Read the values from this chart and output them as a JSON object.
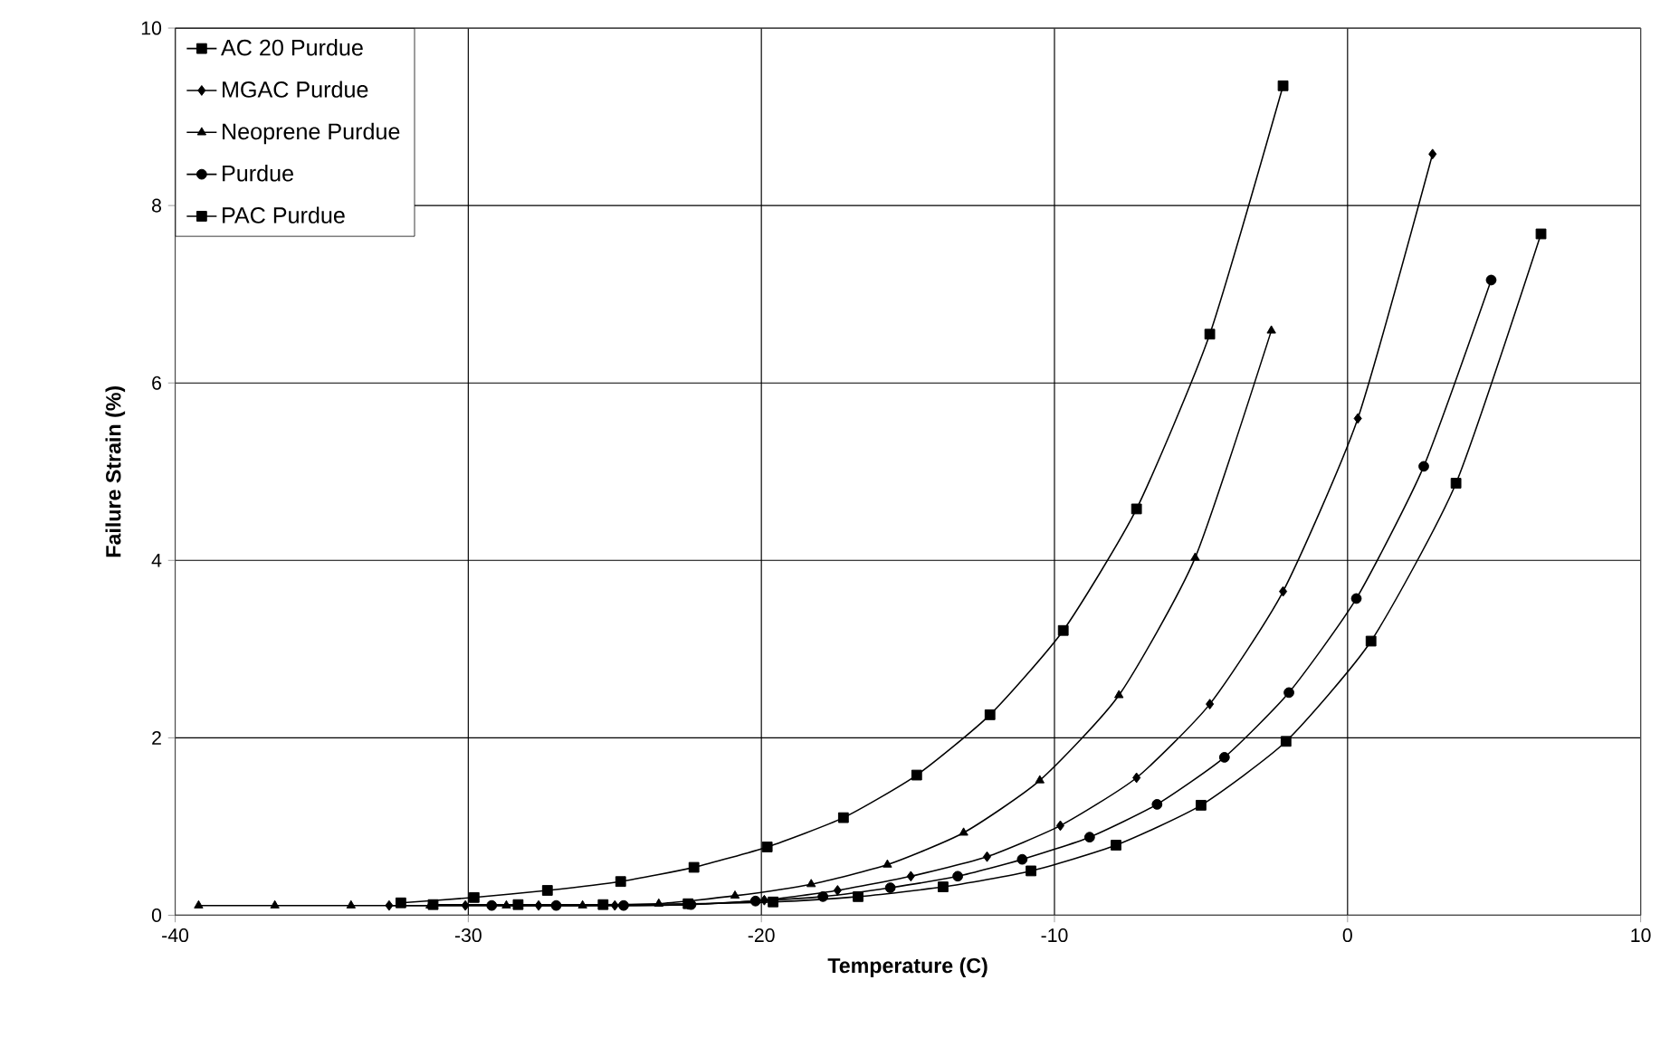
{
  "chart_data": {
    "type": "line",
    "xlabel": "Temperature (C)",
    "ylabel": "Failure Strain (%)",
    "xlim": [
      -40,
      10
    ],
    "ylim": [
      0,
      10
    ],
    "xticks": [
      -40,
      -30,
      -20,
      -10,
      0,
      10
    ],
    "yticks": [
      0,
      2,
      4,
      6,
      8,
      10
    ],
    "grid": true,
    "legend": "top left",
    "line_style": "solid",
    "series": [
      {
        "name": "AC 20 Purdue",
        "color": "#000000",
        "marker": "square",
        "x": [
          -31.2,
          -28.3,
          -25.4,
          -22.5,
          -19.6,
          -16.7,
          -13.8,
          -10.8,
          -7.9,
          -5.0,
          -2.1,
          0.8,
          3.7,
          6.6
        ],
        "values": [
          0.12,
          0.12,
          0.12,
          0.13,
          0.15,
          0.21,
          0.32,
          0.5,
          0.79,
          1.24,
          1.96,
          3.09,
          4.87,
          7.68
        ]
      },
      {
        "name": "MGAC Purdue",
        "color": "#000000",
        "marker": "diamond",
        "x": [
          -32.7,
          -30.1,
          -27.6,
          -25.0,
          -22.5,
          -19.9,
          -17.4,
          -14.9,
          -12.3,
          -9.8,
          -7.2,
          -4.7,
          -2.2,
          0.35,
          2.9
        ],
        "values": [
          0.11,
          0.11,
          0.11,
          0.11,
          0.12,
          0.17,
          0.28,
          0.44,
          0.66,
          1.01,
          1.55,
          2.38,
          3.65,
          5.6,
          8.58
        ]
      },
      {
        "name": "Neoprene Purdue",
        "color": "#000000",
        "marker": "triangle",
        "x": [
          -39.2,
          -36.6,
          -34.0,
          -31.3,
          -28.7,
          -26.1,
          -23.5,
          -20.9,
          -18.3,
          -15.7,
          -13.1,
          -10.5,
          -7.8,
          -5.2,
          -2.6
        ],
        "values": [
          0.11,
          0.11,
          0.11,
          0.11,
          0.11,
          0.11,
          0.13,
          0.22,
          0.35,
          0.57,
          0.93,
          1.52,
          2.48,
          4.03,
          6.59
        ]
      },
      {
        "name": "Purdue",
        "color": "#000000",
        "marker": "circle",
        "x": [
          -29.2,
          -27.0,
          -24.7,
          -22.4,
          -20.2,
          -17.9,
          -15.6,
          -13.3,
          -11.1,
          -8.8,
          -6.5,
          -4.2,
          -2.0,
          0.3,
          2.6,
          4.9
        ],
        "values": [
          0.11,
          0.11,
          0.11,
          0.12,
          0.16,
          0.21,
          0.31,
          0.44,
          0.63,
          0.88,
          1.25,
          1.78,
          2.51,
          3.57,
          5.06,
          7.16
        ]
      },
      {
        "name": "PAC Purdue",
        "color": "#000000",
        "marker": "square",
        "x": [
          -32.3,
          -29.8,
          -27.3,
          -24.8,
          -22.3,
          -19.8,
          -17.2,
          -14.7,
          -12.2,
          -9.7,
          -7.2,
          -4.7,
          -2.2
        ],
        "values": [
          0.14,
          0.2,
          0.28,
          0.38,
          0.54,
          0.77,
          1.1,
          1.58,
          2.26,
          3.21,
          4.58,
          6.55,
          9.35
        ]
      }
    ]
  }
}
